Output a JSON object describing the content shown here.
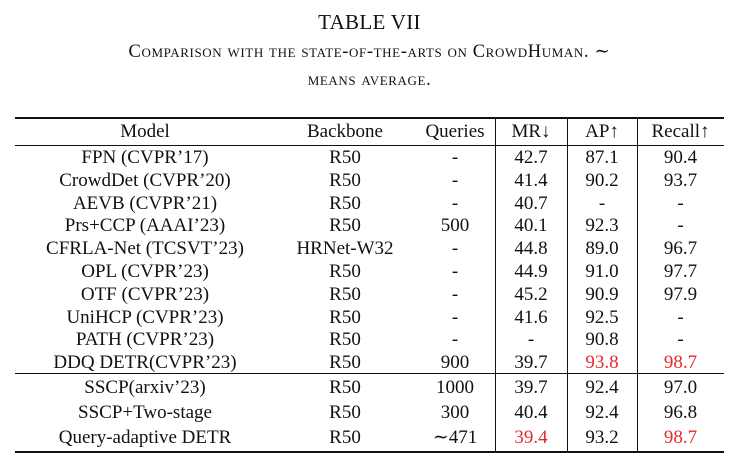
{
  "table": {
    "label": "TABLE VII",
    "caption_line1": "Comparison with the state-of-the-arts on CrowdHuman. ∼",
    "caption_line2": "means average.",
    "headers": {
      "model": "Model",
      "backbone": "Backbone",
      "queries": "Queries",
      "mr": "MR↓",
      "ap": "AP↑",
      "recall": "Recall↑"
    },
    "highlight_color": "#e8292d",
    "rows": [
      {
        "model": "FPN (CVPR’17)",
        "backbone": "R50",
        "queries": "-",
        "mr": "42.7",
        "ap": "87.1",
        "recall": "90.4",
        "highlight": []
      },
      {
        "model": "CrowdDet (CVPR’20)",
        "backbone": "R50",
        "queries": "-",
        "mr": "41.4",
        "ap": "90.2",
        "recall": "93.7",
        "highlight": []
      },
      {
        "model": "AEVB (CVPR’21)",
        "backbone": "R50",
        "queries": "-",
        "mr": "40.7",
        "ap": "-",
        "recall": "-",
        "highlight": []
      },
      {
        "model": "Prs+CCP (AAAI’23)",
        "backbone": "R50",
        "queries": "500",
        "mr": "40.1",
        "ap": "92.3",
        "recall": "-",
        "highlight": []
      },
      {
        "model": "CFRLA-Net (TCSVT’23)",
        "backbone": "HRNet-W32",
        "queries": "-",
        "mr": "44.8",
        "ap": "89.0",
        "recall": "96.7",
        "highlight": []
      },
      {
        "model": "OPL (CVPR’23)",
        "backbone": "R50",
        "queries": "-",
        "mr": "44.9",
        "ap": "91.0",
        "recall": "97.7",
        "highlight": []
      },
      {
        "model": "OTF (CVPR’23)",
        "backbone": "R50",
        "queries": "-",
        "mr": "45.2",
        "ap": "90.9",
        "recall": "97.9",
        "highlight": []
      },
      {
        "model": "UniHCP (CVPR’23)",
        "backbone": "R50",
        "queries": "-",
        "mr": "41.6",
        "ap": "92.5",
        "recall": "-",
        "highlight": []
      },
      {
        "model": "PATH (CVPR’23)",
        "backbone": "R50",
        "queries": "-",
        "mr": "-",
        "ap": "90.8",
        "recall": "-",
        "highlight": []
      },
      {
        "model": "DDQ DETR(CVPR’23)",
        "backbone": "R50",
        "queries": "900",
        "mr": "39.7",
        "ap": "93.8",
        "recall": "98.7",
        "highlight": [
          "ap",
          "recall"
        ]
      },
      {
        "model": "SSCP(arxiv’23)",
        "backbone": "R50",
        "queries": "1000",
        "mr": "39.7",
        "ap": "92.4",
        "recall": "97.0",
        "highlight": []
      },
      {
        "model": "SSCP+Two-stage",
        "backbone": "R50",
        "queries": "300",
        "mr": "40.4",
        "ap": "92.4",
        "recall": "96.8",
        "highlight": []
      },
      {
        "model": "Query-adaptive DETR",
        "backbone": "R50",
        "queries": "∼471",
        "mr": "39.4",
        "ap": "93.2",
        "recall": "98.7",
        "highlight": [
          "mr",
          "recall"
        ]
      }
    ]
  }
}
